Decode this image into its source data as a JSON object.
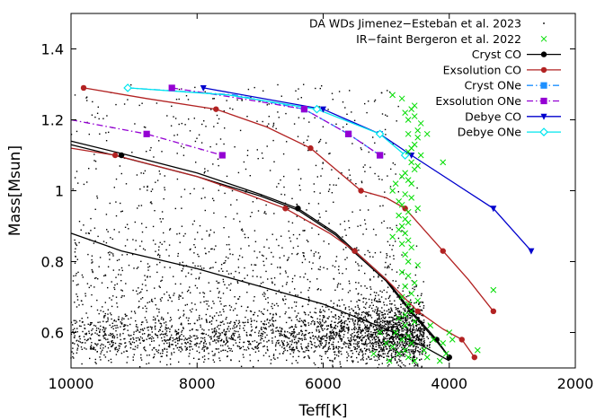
{
  "chart_data": {
    "type": "scatter",
    "xlabel": "Teff[K]",
    "ylabel": "Mass[Msun]",
    "xlim": [
      10000,
      2000
    ],
    "ylim": [
      0.5,
      1.5
    ],
    "x_ticks": [
      10000,
      8000,
      6000,
      4000,
      2000
    ],
    "y_ticks": [
      0.6,
      0.8,
      1,
      1.2,
      1.4
    ],
    "x_tick_labels": [
      "10000",
      "8000",
      "6000",
      "4000",
      "2000"
    ],
    "y_tick_labels": [
      "0.6",
      "0.8",
      "1",
      "1.2",
      "1.4"
    ],
    "grid": false,
    "legend_position": "top-right",
    "series": [
      {
        "name": "DA WDs Jimenez−Esteban et al. 2023",
        "kind": "scatter",
        "marker": "dot",
        "color": "#000000",
        "count": 4000,
        "distribution": "dense cloud of points concentrated between 0.5 and 0.9 Msun and 4000-10000 K, densest near 4500-5500 K and 0.55-0.65 Msun"
      },
      {
        "name": "IR−faint Bergeron et al. 2022",
        "kind": "scatter",
        "marker": "x",
        "color": "#00dd00",
        "points": [
          [
            4900,
            1.27
          ],
          [
            4750,
            1.26
          ],
          [
            4550,
            1.24
          ],
          [
            4600,
            1.23
          ],
          [
            4700,
            1.22
          ],
          [
            4550,
            1.21
          ],
          [
            4650,
            1.2
          ],
          [
            4450,
            1.19
          ],
          [
            4500,
            1.17
          ],
          [
            4350,
            1.16
          ],
          [
            4650,
            1.16
          ],
          [
            4500,
            1.15
          ],
          [
            4550,
            1.13
          ],
          [
            4600,
            1.12
          ],
          [
            4650,
            1.11
          ],
          [
            4450,
            1.1
          ],
          [
            4600,
            1.08
          ],
          [
            4500,
            1.07
          ],
          [
            4550,
            1.06
          ],
          [
            4700,
            1.05
          ],
          [
            4750,
            1.04
          ],
          [
            4650,
            1.03
          ],
          [
            4850,
            1.02
          ],
          [
            4600,
            1.02
          ],
          [
            4900,
            1.0
          ],
          [
            4700,
            0.99
          ],
          [
            4600,
            0.98
          ],
          [
            4800,
            0.97
          ],
          [
            4750,
            0.96
          ],
          [
            4500,
            0.95
          ],
          [
            4650,
            0.94
          ],
          [
            4800,
            0.93
          ],
          [
            4700,
            0.92
          ],
          [
            4650,
            0.91
          ],
          [
            4750,
            0.9
          ],
          [
            4800,
            0.89
          ],
          [
            4700,
            0.88
          ],
          [
            4900,
            0.87
          ],
          [
            4650,
            0.86
          ],
          [
            4750,
            0.85
          ],
          [
            4600,
            0.84
          ],
          [
            4700,
            0.82
          ],
          [
            4650,
            0.8
          ],
          [
            4500,
            0.79
          ],
          [
            4750,
            0.77
          ],
          [
            4650,
            0.76
          ],
          [
            4550,
            0.74
          ],
          [
            4700,
            0.73
          ],
          [
            4600,
            0.71
          ],
          [
            4750,
            0.7
          ],
          [
            4500,
            0.69
          ],
          [
            4650,
            0.68
          ],
          [
            4600,
            0.66
          ],
          [
            4700,
            0.65
          ],
          [
            4800,
            0.64
          ],
          [
            4550,
            0.63
          ],
          [
            4700,
            0.62
          ],
          [
            4850,
            0.6
          ],
          [
            4650,
            0.59
          ],
          [
            4750,
            0.58
          ],
          [
            4600,
            0.57
          ],
          [
            4900,
            0.56
          ],
          [
            4700,
            0.55
          ],
          [
            4800,
            0.54
          ],
          [
            4650,
            0.53
          ],
          [
            4550,
            0.52
          ],
          [
            4950,
            0.52
          ],
          [
            4350,
            0.53
          ],
          [
            4300,
            0.62
          ],
          [
            4250,
            0.58
          ],
          [
            4400,
            0.55
          ],
          [
            4100,
            0.57
          ],
          [
            4050,
            0.54
          ],
          [
            5200,
            0.54
          ],
          [
            5000,
            0.57
          ],
          [
            5100,
            0.6
          ],
          [
            4100,
            1.08
          ],
          [
            3300,
            0.72
          ],
          [
            3550,
            0.55
          ],
          [
            3950,
            0.58
          ],
          [
            4150,
            0.52
          ],
          [
            4000,
            0.6
          ]
        ]
      },
      {
        "name": "Cryst CO",
        "kind": "line",
        "marker": "circle",
        "color": "#000000",
        "markers": [
          [
            9200,
            1.1
          ],
          [
            6400,
            0.95
          ],
          [
            5500,
            0.83
          ],
          [
            4600,
            0.66
          ],
          [
            4200,
            0.58
          ],
          [
            4000,
            0.53
          ]
        ],
        "curves": [
          [
            [
              10000,
              1.14
            ],
            [
              9200,
              1.105
            ],
            [
              8000,
              1.05
            ],
            [
              7000,
              0.99
            ],
            [
              6400,
              0.95
            ],
            [
              5800,
              0.88
            ],
            [
              5500,
              0.83
            ],
            [
              5000,
              0.75
            ],
            [
              4600,
              0.66
            ],
            [
              4200,
              0.58
            ],
            [
              4000,
              0.53
            ]
          ],
          [
            [
              10000,
              1.13
            ],
            [
              9200,
              1.095
            ],
            [
              8000,
              1.04
            ],
            [
              7000,
              0.985
            ],
            [
              6400,
              0.945
            ],
            [
              5800,
              0.875
            ],
            [
              5500,
              0.825
            ],
            [
              5000,
              0.745
            ],
            [
              4600,
              0.655
            ],
            [
              4200,
              0.575
            ],
            [
              4000,
              0.53
            ]
          ],
          [
            [
              10000,
              0.88
            ],
            [
              9200,
              0.83
            ],
            [
              8000,
              0.78
            ],
            [
              7000,
              0.73
            ],
            [
              6000,
              0.68
            ],
            [
              5000,
              0.61
            ],
            [
              4400,
              0.56
            ],
            [
              4000,
              0.52
            ]
          ]
        ]
      },
      {
        "name": "Exsolution CO",
        "kind": "line",
        "marker": "circle",
        "color": "#b22222",
        "markers": [
          [
            9800,
            1.29
          ],
          [
            7700,
            1.23
          ],
          [
            6200,
            1.12
          ],
          [
            5400,
            1.0
          ],
          [
            4700,
            0.95
          ],
          [
            4100,
            0.83
          ],
          [
            3300,
            0.66
          ],
          [
            9300,
            1.1
          ],
          [
            6600,
            0.95
          ],
          [
            5500,
            0.83
          ],
          [
            4500,
            0.66
          ],
          [
            3800,
            0.58
          ],
          [
            3600,
            0.53
          ]
        ],
        "curves": [
          [
            [
              9800,
              1.29
            ],
            [
              8800,
              1.26
            ],
            [
              7700,
              1.23
            ],
            [
              6900,
              1.18
            ],
            [
              6200,
              1.12
            ],
            [
              5800,
              1.06
            ],
            [
              5400,
              1.0
            ],
            [
              5000,
              0.98
            ],
            [
              4700,
              0.95
            ],
            [
              4400,
              0.89
            ],
            [
              4100,
              0.83
            ],
            [
              3700,
              0.75
            ],
            [
              3300,
              0.66
            ]
          ],
          [
            [
              10000,
              1.12
            ],
            [
              9300,
              1.1
            ],
            [
              8000,
              1.04
            ],
            [
              7200,
              0.99
            ],
            [
              6600,
              0.95
            ],
            [
              5900,
              0.88
            ],
            [
              5500,
              0.83
            ],
            [
              5000,
              0.75
            ],
            [
              4500,
              0.66
            ],
            [
              4100,
              0.61
            ],
            [
              3800,
              0.58
            ],
            [
              3600,
              0.53
            ]
          ]
        ]
      },
      {
        "name": "Cryst ONe",
        "kind": "line",
        "dash": "dashdot",
        "marker": "square",
        "color": "#1e90ff",
        "markers": [
          [
            6300,
            1.23
          ],
          [
            5600,
            1.16
          ],
          [
            5100,
            1.1
          ]
        ],
        "curves": [
          [
            [
              9100,
              1.29
            ],
            [
              7400,
              1.27
            ],
            [
              6300,
              1.23
            ],
            [
              5600,
              1.16
            ],
            [
              5100,
              1.1
            ]
          ]
        ]
      },
      {
        "name": "Exsolution ONe",
        "kind": "line",
        "dash": "dashdot",
        "marker": "square",
        "color": "#9400d3",
        "markers": [
          [
            8400,
            1.29
          ],
          [
            6300,
            1.23
          ],
          [
            5600,
            1.16
          ],
          [
            5100,
            1.1
          ],
          [
            8800,
            1.16
          ],
          [
            7600,
            1.1
          ]
        ],
        "curves": [
          [
            [
              8400,
              1.29
            ],
            [
              7300,
              1.26
            ],
            [
              6300,
              1.23
            ],
            [
              5600,
              1.16
            ],
            [
              5100,
              1.1
            ]
          ],
          [
            [
              10000,
              1.2
            ],
            [
              8800,
              1.16
            ],
            [
              7600,
              1.1
            ]
          ]
        ]
      },
      {
        "name": "Debye CO",
        "kind": "line",
        "marker": "triangle-down",
        "color": "#0000cd",
        "markers": [
          [
            7900,
            1.29
          ],
          [
            6000,
            1.23
          ],
          [
            5100,
            1.16
          ],
          [
            4600,
            1.1
          ],
          [
            3300,
            0.95
          ],
          [
            2700,
            0.83
          ]
        ],
        "curves": [
          [
            [
              7900,
              1.29
            ],
            [
              6000,
              1.23
            ],
            [
              5100,
              1.16
            ],
            [
              4600,
              1.1
            ],
            [
              3300,
              0.95
            ],
            [
              2700,
              0.83
            ]
          ]
        ]
      },
      {
        "name": "Debye ONe",
        "kind": "line",
        "marker": "diamond",
        "color": "#00e5ee",
        "markers": [
          [
            9100,
            1.29
          ],
          [
            6100,
            1.23
          ],
          [
            5100,
            1.16
          ],
          [
            4700,
            1.1
          ]
        ],
        "curves": [
          [
            [
              9100,
              1.29
            ],
            [
              7500,
              1.27
            ],
            [
              6100,
              1.23
            ],
            [
              5100,
              1.16
            ],
            [
              4700,
              1.1
            ]
          ]
        ]
      }
    ]
  }
}
